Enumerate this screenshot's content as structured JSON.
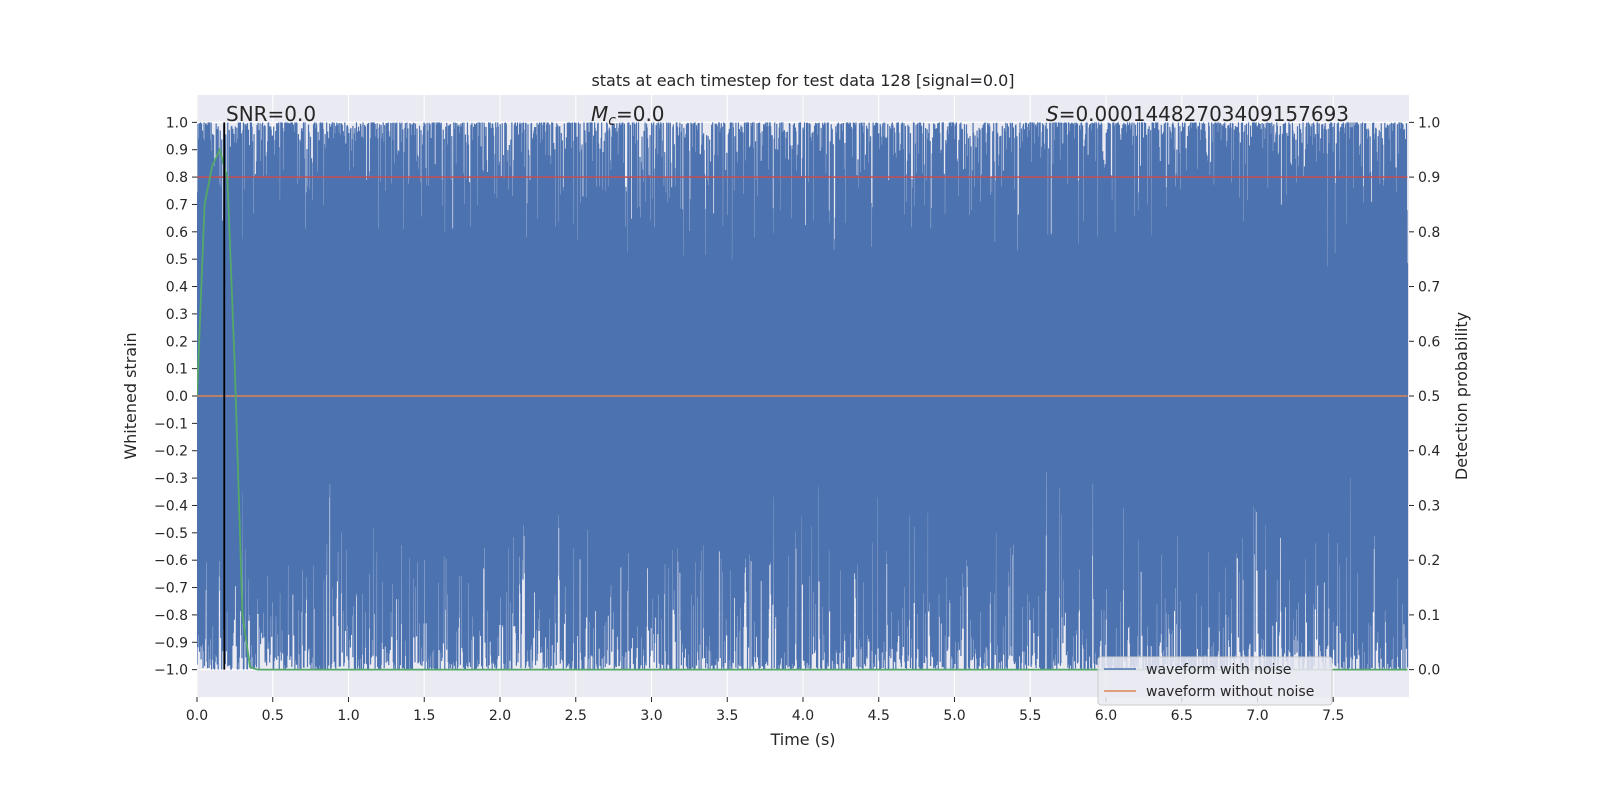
{
  "chart_data": {
    "type": "line",
    "title": "stats at each timestep for test data 128 [signal=0.0]",
    "xlabel": "Time (s)",
    "ylabel": "Whitened strain",
    "y2label": "Detection probability",
    "xlim": [
      0.0,
      8.0
    ],
    "ylim": [
      -1.1,
      1.1
    ],
    "y2lim": [
      -0.05,
      1.05
    ],
    "grid": true,
    "legend_position": "lower-right",
    "xticks": [
      "0.0",
      "0.5",
      "1.0",
      "1.5",
      "2.0",
      "2.5",
      "3.0",
      "3.5",
      "4.0",
      "4.5",
      "5.0",
      "5.5",
      "6.0",
      "6.5",
      "7.0",
      "7.5"
    ],
    "xtick_values": [
      0.0,
      0.5,
      1.0,
      1.5,
      2.0,
      2.5,
      3.0,
      3.5,
      4.0,
      4.5,
      5.0,
      5.5,
      6.0,
      6.5,
      7.0,
      7.5
    ],
    "yticks": [
      "1.0",
      "0.9",
      "0.8",
      "0.7",
      "0.6",
      "0.5",
      "0.4",
      "0.3",
      "0.2",
      "0.1",
      "0.0",
      "−0.1",
      "−0.2",
      "−0.3",
      "−0.4",
      "−0.5",
      "−0.6",
      "−0.7",
      "−0.8",
      "−0.9",
      "−1.0"
    ],
    "ytick_values": [
      1.0,
      0.9,
      0.8,
      0.7,
      0.6,
      0.5,
      0.4,
      0.3,
      0.2,
      0.1,
      0.0,
      -0.1,
      -0.2,
      -0.3,
      -0.4,
      -0.5,
      -0.6,
      -0.7,
      -0.8,
      -0.9,
      -1.0
    ],
    "y2ticks": [
      "1.0",
      "0.9",
      "0.8",
      "0.7",
      "0.6",
      "0.5",
      "0.4",
      "0.3",
      "0.2",
      "0.1",
      "0.0"
    ],
    "y2tick_values": [
      1.0,
      0.9,
      0.8,
      0.7,
      0.6,
      0.5,
      0.4,
      0.3,
      0.2,
      0.1,
      0.0
    ],
    "annotations": {
      "snr": "SNR=0.0",
      "mc_symbol": "M",
      "mc_sub": "c",
      "mc_value": "=0.0",
      "s_symbol": "S",
      "s_value": "=0.00014482703409157693"
    },
    "series": [
      {
        "name": "waveform with noise",
        "color": "#4c72b0",
        "axis": "left",
        "description_range": [
          -1.0,
          1.0
        ],
        "x_range": [
          0.0,
          7.99
        ]
      },
      {
        "name": "waveform without noise",
        "color": "#dd8452",
        "axis": "left",
        "x": [
          0.0,
          7.99
        ],
        "y": [
          0.0,
          0.0
        ]
      },
      {
        "color": "#55a868",
        "axis": "right",
        "x": [
          0.0,
          0.05,
          0.1,
          0.15,
          0.2,
          0.25,
          0.3,
          0.35,
          0.4,
          1.0,
          2.0,
          3.0,
          4.0,
          5.0,
          6.0,
          7.0,
          7.99
        ],
        "y": [
          0.5,
          0.85,
          0.92,
          0.95,
          0.9,
          0.55,
          0.1,
          0.005,
          0.0,
          0.0,
          0.0,
          0.0,
          0.0,
          0.0,
          0.0,
          0.0,
          0.0
        ]
      },
      {
        "color": "#c44e52",
        "axis": "right",
        "x": [
          0.0,
          7.99
        ],
        "y": [
          0.9,
          0.9
        ]
      }
    ],
    "vline": {
      "x": 0.18,
      "color": "#000000"
    }
  }
}
